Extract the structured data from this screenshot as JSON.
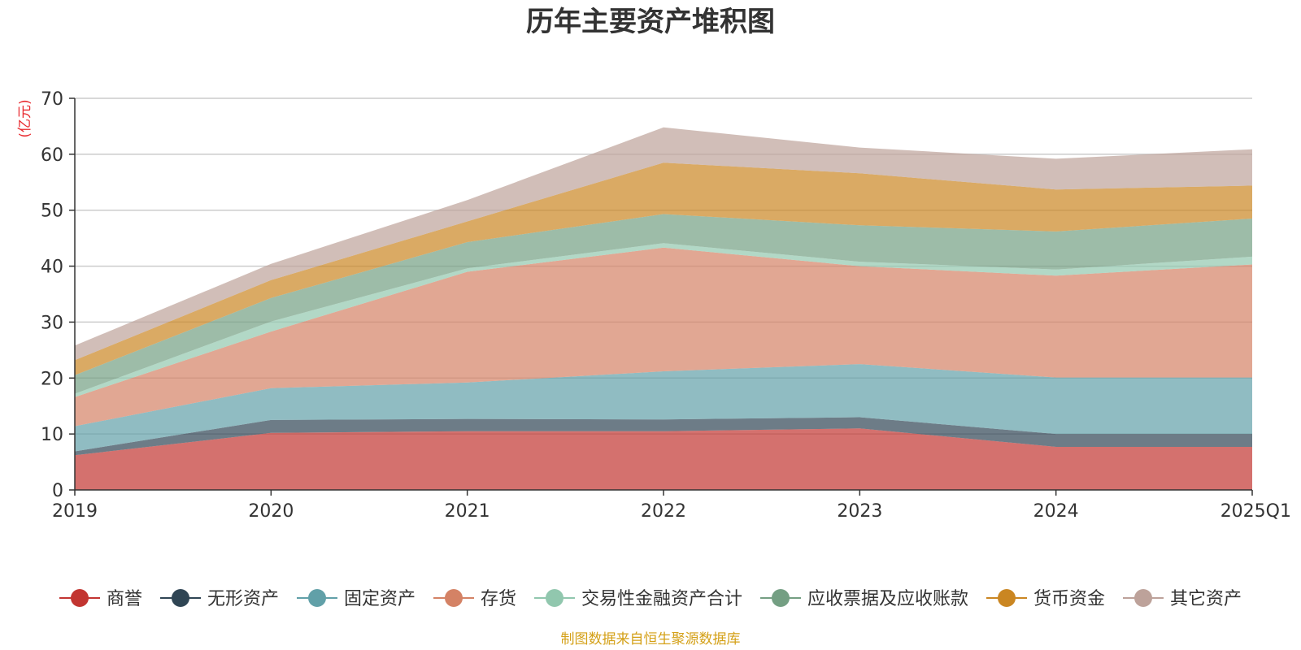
{
  "chart_data": {
    "type": "area",
    "stacked": true,
    "title": "历年主要资产堆积图",
    "unit_label": "(亿元)",
    "categories": [
      "2019",
      "2020",
      "2021",
      "2022",
      "2023",
      "2024",
      "2025Q1"
    ],
    "ylim": [
      0,
      70
    ],
    "yticks": [
      0,
      10,
      20,
      30,
      40,
      50,
      60,
      70
    ],
    "grid": true,
    "legend_position": "bottom",
    "series": [
      {
        "name": "商誉",
        "color": "#c23531",
        "values": [
          6.2,
          10.2,
          10.5,
          10.5,
          11.0,
          7.7,
          7.7
        ]
      },
      {
        "name": "无形资产",
        "color": "#2f4554",
        "values": [
          0.7,
          2.3,
          2.2,
          2.1,
          2.0,
          2.3,
          2.3
        ]
      },
      {
        "name": "固定资产",
        "color": "#61a0a8",
        "values": [
          4.5,
          5.7,
          6.5,
          8.6,
          9.5,
          10.1,
          10.1
        ]
      },
      {
        "name": "存货",
        "color": "#d48265",
        "values": [
          5.2,
          10.1,
          19.8,
          22.1,
          17.5,
          18.2,
          20.2
        ]
      },
      {
        "name": "交易性金融资产合计",
        "color": "#91c7ae",
        "values": [
          0.6,
          1.8,
          0.6,
          0.8,
          0.8,
          1.1,
          1.4
        ]
      },
      {
        "name": "应收票据及应收账款",
        "color": "#749f83",
        "values": [
          3.3,
          4.2,
          4.7,
          5.2,
          6.5,
          6.8,
          6.8
        ]
      },
      {
        "name": "货币资金",
        "color": "#ca8622",
        "values": [
          2.7,
          3.2,
          3.7,
          9.2,
          9.3,
          7.5,
          5.9
        ]
      },
      {
        "name": "其它资产",
        "color": "#bda29a",
        "values": [
          2.6,
          2.9,
          3.8,
          6.3,
          4.6,
          5.5,
          6.5
        ]
      }
    ]
  },
  "source_text": "制图数据来自恒生聚源数据库"
}
